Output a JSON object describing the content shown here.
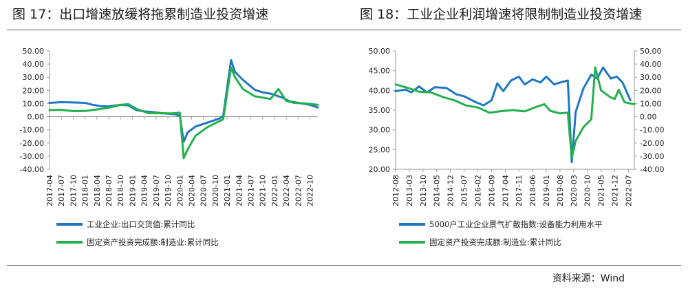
{
  "colors": {
    "blue": "#1f77c4",
    "green": "#22b14c",
    "axis": "#999999"
  },
  "source": "资料来源：Wind",
  "chart_data": [
    {
      "type": "line",
      "title": "图 17：出口增速放缓将拖累制造业投资增速",
      "ylim": [
        -40,
        50
      ],
      "yticks": [
        50,
        40,
        30,
        20,
        10,
        0,
        -10,
        -20,
        -30,
        -40
      ],
      "ytick_labels": [
        "50.00",
        "40.00",
        "30.00",
        "20.00",
        "10.00",
        "0.00",
        "-10.00",
        "-20.00",
        "-30.00",
        "-40.00"
      ],
      "xlim": [
        "2017-04",
        "2022-12"
      ],
      "xticks": [
        "2017-04",
        "2017-07",
        "2017-10",
        "2018-01",
        "2018-04",
        "2018-07",
        "2018-10",
        "2019-01",
        "2019-04",
        "2019-07",
        "2019-10",
        "2020-01",
        "2020-04",
        "2020-07",
        "2020-10",
        "2021-01",
        "2021-04",
        "2021-07",
        "2021-10",
        "2022-01",
        "2022-04",
        "2022-07",
        "2022-10"
      ],
      "grid": false,
      "legend_position": "bottom",
      "series": [
        {
          "name": "工业企业:出口交货值:累计同比",
          "color": "blue",
          "points": [
            [
              "2017-04",
              10.5
            ],
            [
              "2017-07",
              11.0
            ],
            [
              "2017-10",
              10.8
            ],
            [
              "2018-01",
              10.5
            ],
            [
              "2018-03",
              9.0
            ],
            [
              "2018-05",
              8.0
            ],
            [
              "2018-07",
              7.8
            ],
            [
              "2018-10",
              9.0
            ],
            [
              "2018-12",
              8.5
            ],
            [
              "2019-02",
              5.0
            ],
            [
              "2019-04",
              4.0
            ],
            [
              "2019-06",
              3.5
            ],
            [
              "2019-09",
              2.5
            ],
            [
              "2019-12",
              1.8
            ],
            [
              "2020-01",
              0.5
            ],
            [
              "2020-02",
              -19.0
            ],
            [
              "2020-03",
              -12.0
            ],
            [
              "2020-05",
              -7.5
            ],
            [
              "2020-08",
              -4.5
            ],
            [
              "2020-11",
              -1.5
            ],
            [
              "2020-12",
              0.5
            ],
            [
              "2021-02",
              43.0
            ],
            [
              "2021-03",
              34.0
            ],
            [
              "2021-05",
              28.0
            ],
            [
              "2021-08",
              20.5
            ],
            [
              "2021-10",
              18.5
            ],
            [
              "2021-12",
              17.5
            ],
            [
              "2022-02",
              15.5
            ],
            [
              "2022-03",
              14.5
            ],
            [
              "2022-05",
              11.5
            ],
            [
              "2022-08",
              10.0
            ],
            [
              "2022-10",
              9.0
            ],
            [
              "2022-12",
              7.0
            ]
          ]
        },
        {
          "name": "固定资产投资完成额:制造业:累计同比",
          "color": "green",
          "points": [
            [
              "2017-04",
              5.0
            ],
            [
              "2017-07",
              5.2
            ],
            [
              "2017-10",
              4.2
            ],
            [
              "2018-01",
              4.3
            ],
            [
              "2018-04",
              5.5
            ],
            [
              "2018-07",
              6.8
            ],
            [
              "2018-10",
              9.0
            ],
            [
              "2018-12",
              9.5
            ],
            [
              "2019-02",
              6.0
            ],
            [
              "2019-05",
              2.7
            ],
            [
              "2019-08",
              2.6
            ],
            [
              "2019-11",
              2.5
            ],
            [
              "2020-01",
              3.0
            ],
            [
              "2020-02",
              -31.5
            ],
            [
              "2020-03",
              -25.0
            ],
            [
              "2020-05",
              -14.5
            ],
            [
              "2020-08",
              -8.0
            ],
            [
              "2020-11",
              -3.5
            ],
            [
              "2020-12",
              -2.0
            ],
            [
              "2021-02",
              37.5
            ],
            [
              "2021-03",
              30.0
            ],
            [
              "2021-05",
              21.0
            ],
            [
              "2021-08",
              15.5
            ],
            [
              "2021-12",
              13.5
            ],
            [
              "2022-02",
              21.0
            ],
            [
              "2022-04",
              12.0
            ],
            [
              "2022-06",
              10.5
            ],
            [
              "2022-09",
              10.0
            ],
            [
              "2022-12",
              9.0
            ]
          ]
        }
      ]
    },
    {
      "type": "line",
      "title": "图 18：工业企业利润增速将限制制造业投资增速",
      "ylim": [
        20,
        50
      ],
      "yticks": [
        50,
        45,
        40,
        35,
        30,
        25,
        20
      ],
      "ytick_labels": [
        "50.00",
        "45.00",
        "40.00",
        "35.00",
        "30.00",
        "25.00",
        "20.00"
      ],
      "y2lim": [
        -40,
        50
      ],
      "y2ticks": [
        50,
        40,
        30,
        20,
        10,
        0,
        -10,
        -20,
        -30,
        -40
      ],
      "y2tick_labels": [
        "50.00",
        "40.00",
        "30.00",
        "20.00",
        "10.00",
        "0.00",
        "-10.00",
        "-20.00",
        "-30.00",
        "-40.00"
      ],
      "xlim": [
        "2012-08",
        "2022-10"
      ],
      "xticks": [
        "2012-08",
        "2013-03",
        "2013-10",
        "2014-05",
        "2014-12",
        "2015-07",
        "2016-02",
        "2016-09",
        "2017-04",
        "2017-11",
        "2018-06",
        "2019-01",
        "2019-08",
        "2020-03",
        "2020-10",
        "2021-05",
        "2021-12",
        "2022-07"
      ],
      "grid": false,
      "legend_position": "bottom",
      "series": [
        {
          "name": "5000户工业企业景气扩散指数:设备能力利用水平",
          "color": "blue",
          "axis": "left",
          "points": [
            [
              "2012-08",
              39.8
            ],
            [
              "2013-01",
              40.2
            ],
            [
              "2013-04",
              39.5
            ],
            [
              "2013-08",
              41.0
            ],
            [
              "2013-12",
              39.5
            ],
            [
              "2014-04",
              40.8
            ],
            [
              "2014-10",
              40.6
            ],
            [
              "2015-03",
              39.0
            ],
            [
              "2015-07",
              38.5
            ],
            [
              "2016-01",
              37.0
            ],
            [
              "2016-05",
              36.2
            ],
            [
              "2016-09",
              37.5
            ],
            [
              "2016-12",
              41.8
            ],
            [
              "2017-03",
              39.8
            ],
            [
              "2017-07",
              42.5
            ],
            [
              "2017-11",
              43.5
            ],
            [
              "2018-02",
              41.5
            ],
            [
              "2018-06",
              42.8
            ],
            [
              "2018-10",
              42.0
            ],
            [
              "2019-01",
              43.5
            ],
            [
              "2019-05",
              41.5
            ],
            [
              "2019-08",
              42.0
            ],
            [
              "2019-12",
              42.5
            ],
            [
              "2020-02",
              21.8
            ],
            [
              "2020-04",
              34.5
            ],
            [
              "2020-08",
              40.5
            ],
            [
              "2020-12",
              44.0
            ],
            [
              "2021-03",
              43.0
            ],
            [
              "2021-06",
              45.8
            ],
            [
              "2021-10",
              43.0
            ],
            [
              "2022-01",
              43.5
            ],
            [
              "2022-04",
              42.0
            ],
            [
              "2022-08",
              37.5
            ]
          ]
        },
        {
          "name": "固定资产投资完成额:制造业:累计同比",
          "color": "green",
          "axis": "right",
          "points": [
            [
              "2012-08",
              24.5
            ],
            [
              "2013-02",
              22.0
            ],
            [
              "2013-08",
              19.0
            ],
            [
              "2014-02",
              18.5
            ],
            [
              "2014-08",
              15.0
            ],
            [
              "2015-02",
              12.5
            ],
            [
              "2015-08",
              8.5
            ],
            [
              "2016-02",
              7.0
            ],
            [
              "2016-08",
              3.0
            ],
            [
              "2017-02",
              4.2
            ],
            [
              "2017-08",
              5.0
            ],
            [
              "2018-02",
              4.0
            ],
            [
              "2018-08",
              7.5
            ],
            [
              "2018-12",
              9.5
            ],
            [
              "2019-03",
              4.5
            ],
            [
              "2019-08",
              2.5
            ],
            [
              "2019-12",
              3.0
            ],
            [
              "2020-02",
              -31.5
            ],
            [
              "2020-04",
              -18.5
            ],
            [
              "2020-08",
              -8.0
            ],
            [
              "2020-12",
              -2.0
            ],
            [
              "2021-02",
              37.5
            ],
            [
              "2021-05",
              20.0
            ],
            [
              "2021-10",
              14.5
            ],
            [
              "2021-12",
              13.5
            ],
            [
              "2022-02",
              20.5
            ],
            [
              "2022-05",
              11.0
            ],
            [
              "2022-08",
              10.0
            ],
            [
              "2022-10",
              9.5
            ]
          ]
        }
      ]
    }
  ]
}
